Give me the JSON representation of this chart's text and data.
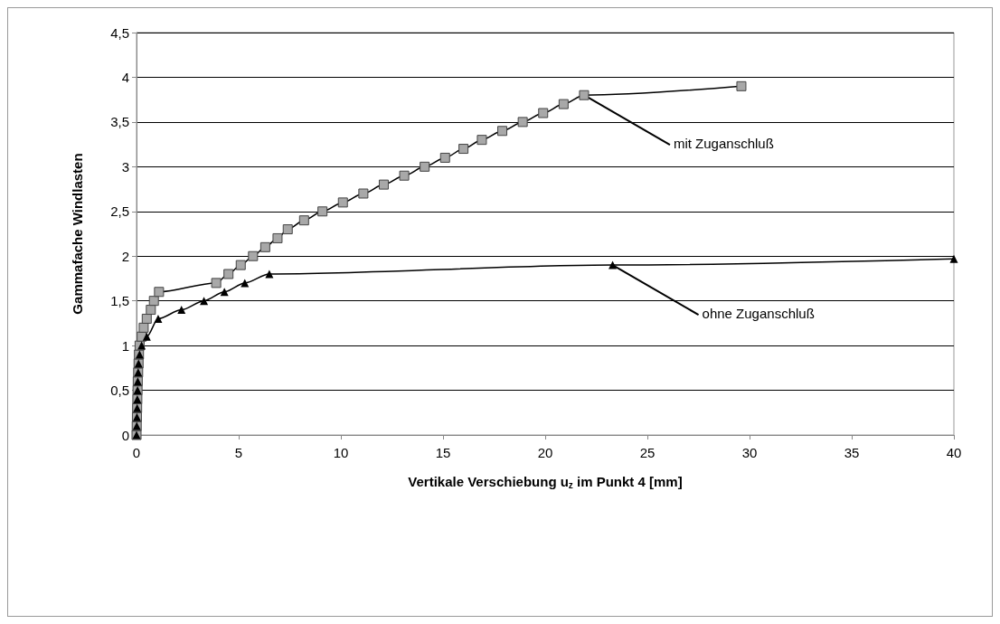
{
  "chart_data": {
    "type": "line",
    "ylabel": "Gammafache Windlasten",
    "xlabel": "Vertikale Verschiebung u$_{z}$ im Punkt 4 [mm]",
    "xlim": [
      0,
      40
    ],
    "xticks": [
      0,
      5,
      10,
      15,
      20,
      25,
      30,
      35,
      40
    ],
    "ylim": [
      0,
      4.5
    ],
    "yticks": [
      0,
      {
        "value": 0.5,
        "label": "0,5"
      },
      1,
      {
        "value": 1.5,
        "label": "1,5"
      },
      2,
      {
        "value": 2.5,
        "label": "2,5"
      },
      3,
      {
        "value": 3.5,
        "label": "3,5"
      },
      4,
      {
        "value": 4.5,
        "label": "4,5"
      }
    ],
    "grid": "y",
    "line_style": "solid",
    "series": [
      {
        "marker": "square",
        "color": "#a8a8a8",
        "x": [
          0,
          0.01,
          0.02,
          0.03,
          0.04,
          0.05,
          0.06,
          0.08,
          0.1,
          0.12,
          0.15,
          0.25,
          0.35,
          0.5,
          0.7,
          0.85,
          1.1,
          3.9,
          4.5,
          5.1,
          5.7,
          6.3,
          6.9,
          7.4,
          8.2,
          9.1,
          10.1,
          11.1,
          12.1,
          13.1,
          14.1,
          15.1,
          16.0,
          16.9,
          17.9,
          18.9,
          19.9,
          20.9,
          21.9,
          29.6
        ],
        "values": [
          0,
          0.1,
          0.2,
          0.3,
          0.4,
          0.5,
          0.6,
          0.7,
          0.8,
          0.9,
          1.0,
          1.1,
          1.2,
          1.3,
          1.4,
          1.5,
          1.6,
          1.7,
          1.8,
          1.9,
          2.0,
          2.1,
          2.2,
          2.3,
          2.4,
          2.5,
          2.6,
          2.7,
          2.8,
          2.9,
          3.0,
          3.1,
          3.2,
          3.3,
          3.4,
          3.5,
          3.6,
          3.7,
          3.8,
          3.9
        ]
      },
      {
        "marker": "triangle",
        "color": "#000000",
        "x": [
          0,
          0.01,
          0.02,
          0.03,
          0.04,
          0.05,
          0.06,
          0.08,
          0.1,
          0.15,
          0.25,
          0.5,
          1.06,
          2.2,
          3.3,
          4.3,
          5.3,
          6.5,
          23.3,
          40
        ],
        "values": [
          0,
          0.1,
          0.2,
          0.3,
          0.4,
          0.5,
          0.6,
          0.7,
          0.8,
          0.9,
          1.0,
          1.1,
          1.3,
          1.4,
          1.5,
          1.6,
          1.7,
          1.8,
          1.9,
          1.97
        ]
      }
    ],
    "annotations": [
      {
        "text": "mit Zuganschluß",
        "x": 21.9,
        "y": 3.8
      },
      {
        "text": "ohne Zuganschluß",
        "x": 23.3,
        "y": 1.9
      }
    ]
  }
}
